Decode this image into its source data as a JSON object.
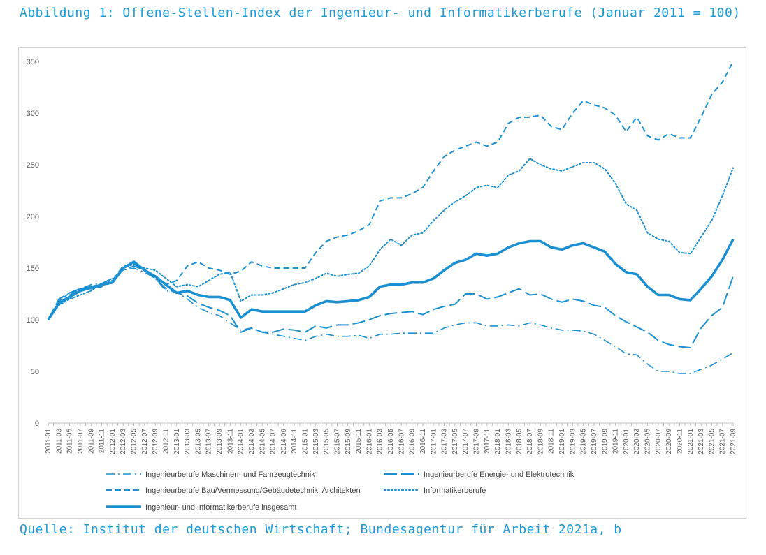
{
  "header": {
    "title": "Abbildung 1: Offene-Stellen-Index der Ingenieur- und Informatikerberufe (Januar 2011 = 100)"
  },
  "footer": {
    "source": "Quelle: Institut der deutschen Wirtschaft; Bundesagentur für Arbeit 2021a, b"
  },
  "colors": {
    "accent": "#1b9ad6",
    "series": "#1a8fd1",
    "axis": "#bfbfbf",
    "text": "#595959"
  },
  "chart_data": {
    "type": "line",
    "title": "",
    "xlabel": "",
    "ylabel": "",
    "ylim": [
      0,
      350
    ],
    "yticks": [
      "0",
      "50",
      "100",
      "150",
      "200",
      "250",
      "300",
      "350"
    ],
    "grid": false,
    "legend_position": "bottom",
    "x": [
      "2011-01",
      "2011-03",
      "2011-05",
      "2011-07",
      "2011-09",
      "2011-11",
      "2012-01",
      "2012-03",
      "2012-05",
      "2012-07",
      "2012-09",
      "2012-11",
      "2013-01",
      "2013-03",
      "2013-05",
      "2013-07",
      "2013-09",
      "2013-11",
      "2014-01",
      "2014-03",
      "2014-05",
      "2014-07",
      "2014-09",
      "2014-11",
      "2015-01",
      "2015-03",
      "2015-05",
      "2015-07",
      "2015-09",
      "2015-11",
      "2016-01",
      "2016-03",
      "2016-05",
      "2016-07",
      "2016-09",
      "2016-11",
      "2017-01",
      "2017-03",
      "2017-05",
      "2017-07",
      "2017-09",
      "2017-11",
      "2018-01",
      "2018-03",
      "2018-05",
      "2018-07",
      "2018-09",
      "2018-11",
      "2019-01",
      "2019-03",
      "2019-05",
      "2019-07",
      "2019-09",
      "2019-11",
      "2020-01",
      "2020-03",
      "2020-05",
      "2020-07",
      "2020-09",
      "2020-11",
      "2021-01",
      "2021-03",
      "2021-05",
      "2021-07",
      "2021-09"
    ],
    "series": [
      {
        "name": "Ingenieurberufe Maschinen- und Fahrzeugtechnik",
        "dash": "dashdot",
        "width": 1.6,
        "values": [
          100,
          118,
          124,
          130,
          134,
          135,
          140,
          148,
          150,
          146,
          140,
          128,
          127,
          120,
          112,
          107,
          104,
          97,
          90,
          92,
          88,
          86,
          84,
          82,
          80,
          84,
          86,
          84,
          84,
          85,
          82,
          86,
          86,
          87,
          87,
          87,
          87,
          92,
          95,
          97,
          97,
          94,
          94,
          95,
          94,
          97,
          95,
          92,
          90,
          90,
          89,
          86,
          80,
          74,
          67,
          66,
          57,
          50,
          50,
          48,
          48,
          52,
          56,
          62,
          68
        ]
      },
      {
        "name": "Ingenieurberufe Energie- und Elektrotechnik",
        "dash": "longdash",
        "width": 2.0,
        "values": [
          100,
          120,
          126,
          130,
          132,
          135,
          140,
          148,
          152,
          148,
          140,
          130,
          126,
          123,
          116,
          112,
          109,
          104,
          88,
          92,
          88,
          88,
          91,
          90,
          88,
          94,
          92,
          95,
          95,
          97,
          100,
          104,
          106,
          107,
          108,
          105,
          110,
          113,
          115,
          125,
          125,
          120,
          122,
          126,
          130,
          124,
          125,
          120,
          117,
          120,
          118,
          114,
          112,
          104,
          98,
          93,
          88,
          80,
          76,
          74,
          73,
          92,
          104,
          112,
          142
        ]
      },
      {
        "name": "Ingenieurberufe Bau/Vermessung/Gebäudetechnik, Architekten",
        "dash": "dashed",
        "width": 2.0,
        "values": [
          100,
          118,
          126,
          130,
          130,
          132,
          138,
          152,
          154,
          148,
          140,
          134,
          138,
          152,
          156,
          150,
          148,
          144,
          147,
          156,
          152,
          150,
          150,
          150,
          150,
          165,
          176,
          180,
          182,
          186,
          192,
          215,
          218,
          218,
          222,
          228,
          244,
          258,
          264,
          268,
          272,
          268,
          272,
          290,
          296,
          296,
          298,
          287,
          284,
          300,
          312,
          308,
          305,
          298,
          282,
          296,
          278,
          274,
          280,
          276,
          276,
          296,
          318,
          330,
          350
        ]
      },
      {
        "name": "Informatikerberufe",
        "dash": "dotted",
        "width": 2.0,
        "values": [
          100,
          114,
          120,
          124,
          128,
          135,
          138,
          150,
          154,
          150,
          148,
          140,
          132,
          134,
          132,
          138,
          144,
          146,
          118,
          124,
          124,
          126,
          130,
          134,
          136,
          140,
          145,
          142,
          144,
          145,
          152,
          168,
          178,
          172,
          182,
          184,
          196,
          206,
          214,
          220,
          228,
          230,
          228,
          240,
          244,
          256,
          250,
          246,
          244,
          248,
          252,
          252,
          246,
          232,
          212,
          206,
          184,
          178,
          176,
          165,
          164,
          180,
          196,
          220,
          247
        ]
      },
      {
        "name": "Ingenieur- und Informatikerberufe insgesamt",
        "dash": "solid",
        "width": 3.6,
        "values": [
          100,
          116,
          122,
          128,
          131,
          134,
          136,
          150,
          156,
          148,
          142,
          134,
          126,
          128,
          124,
          122,
          122,
          119,
          102,
          110,
          108,
          108,
          108,
          108,
          108,
          114,
          118,
          117,
          118,
          119,
          122,
          132,
          134,
          134,
          136,
          136,
          140,
          148,
          155,
          158,
          164,
          162,
          164,
          170,
          174,
          176,
          176,
          170,
          168,
          172,
          174,
          170,
          166,
          154,
          146,
          144,
          132,
          124,
          124,
          120,
          119,
          130,
          142,
          158,
          178
        ]
      }
    ]
  }
}
